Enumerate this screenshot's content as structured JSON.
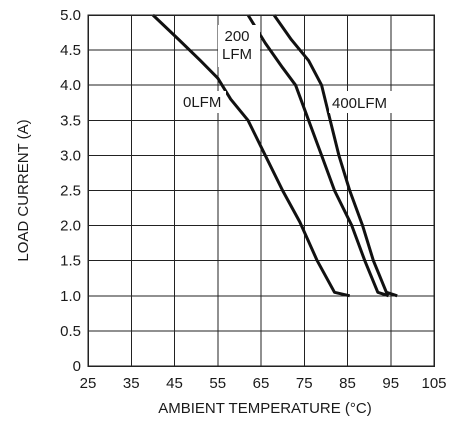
{
  "chart_data": {
    "type": "line",
    "xlabel": "AMBIENT TEMPERATURE (°C)",
    "ylabel": "LOAD CURRENT (A)",
    "xlim": [
      25,
      105
    ],
    "ylim": [
      0,
      5
    ],
    "xticks": [
      25,
      35,
      45,
      55,
      65,
      75,
      85,
      95,
      105
    ],
    "yticks": [
      "0",
      "0.5",
      "1.0",
      "1.5",
      "2.0",
      "2.5",
      "3.0",
      "3.5",
      "4.0",
      "4.5",
      "5.0"
    ],
    "grid": true,
    "series": [
      {
        "name": "0LFM",
        "points": [
          [
            40,
            5.0
          ],
          [
            46,
            4.65
          ],
          [
            51,
            4.35
          ],
          [
            55,
            4.1
          ],
          [
            58,
            3.8
          ],
          [
            62,
            3.5
          ],
          [
            66,
            3.0
          ],
          [
            70,
            2.5
          ],
          [
            74,
            2.05
          ],
          [
            78,
            1.5
          ],
          [
            82,
            1.05
          ],
          [
            85.5,
            1.0
          ]
        ]
      },
      {
        "name": "200\nLFM",
        "points": [
          [
            62,
            5.0
          ],
          [
            66,
            4.6
          ],
          [
            70,
            4.25
          ],
          [
            73,
            4.0
          ],
          [
            76,
            3.5
          ],
          [
            79,
            3.0
          ],
          [
            82,
            2.5
          ],
          [
            86,
            2.0
          ],
          [
            89,
            1.5
          ],
          [
            92,
            1.05
          ],
          [
            94.5,
            1.0
          ]
        ]
      },
      {
        "name": "400LFM",
        "points": [
          [
            68,
            5.0
          ],
          [
            72,
            4.65
          ],
          [
            76,
            4.35
          ],
          [
            79,
            4.0
          ],
          [
            81,
            3.5
          ],
          [
            83,
            3.0
          ],
          [
            85.5,
            2.5
          ],
          [
            88.5,
            2.0
          ],
          [
            91,
            1.5
          ],
          [
            94,
            1.05
          ],
          [
            96.5,
            1.0
          ]
        ]
      }
    ]
  }
}
